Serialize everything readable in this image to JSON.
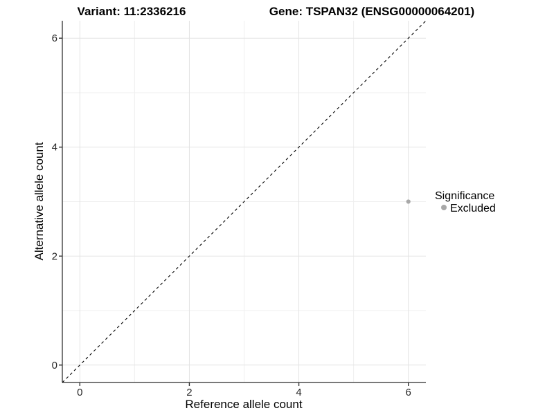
{
  "chart_data": {
    "type": "scatter",
    "titles": {
      "left": "Variant: 11:2336216",
      "right": "Gene: TSPAN32 (ENSG00000064201)"
    },
    "xlabel": "Reference allele count",
    "ylabel": "Alternative allele count",
    "xlim": [
      -0.32,
      6.32
    ],
    "ylim": [
      -0.32,
      6.32
    ],
    "x_ticks": [
      0,
      2,
      4,
      6
    ],
    "y_ticks": [
      0,
      2,
      4,
      6
    ],
    "x_minor_ticks": [
      1,
      3,
      5
    ],
    "y_minor_ticks": [
      1,
      3,
      5
    ],
    "grid": true,
    "points": [
      {
        "x": 6,
        "y": 3,
        "series": "Excluded",
        "color": "#a8a8a8"
      }
    ],
    "reference_line": {
      "type": "identity y=x",
      "style": "dashed",
      "color": "#000000"
    },
    "legend": {
      "title": "Significance",
      "position": "right",
      "entries": [
        {
          "label": "Excluded",
          "color": "#a8a8a8"
        }
      ]
    },
    "colors": {
      "background": "#ffffff",
      "grid_major": "#e3e3e3",
      "grid_minor": "#efefef",
      "axis_line": "#4d4d4d",
      "tick_mark": "#333333"
    }
  }
}
